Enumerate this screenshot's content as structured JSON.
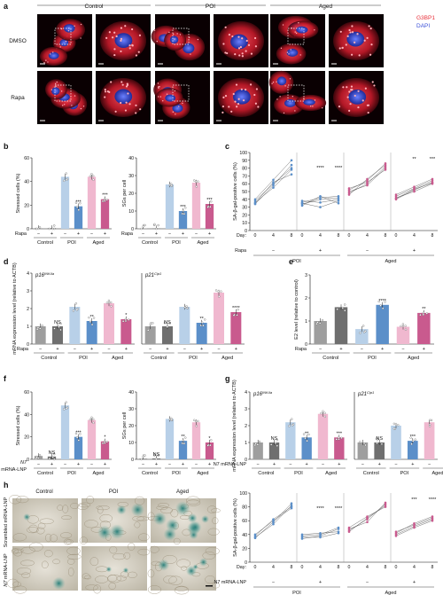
{
  "panel_letters": [
    "a",
    "b",
    "c",
    "d",
    "e",
    "f",
    "g",
    "h"
  ],
  "panel_a": {
    "groups": [
      "Control",
      "POI",
      "Aged"
    ],
    "rows": [
      "DMSO",
      "Rapa"
    ],
    "legend": {
      "g3bp1": "G3BP1",
      "dapi": "DAPI",
      "g3bp1_color": "#e8303a",
      "dapi_color": "#3b50d8"
    }
  },
  "common": {
    "minus": "−",
    "plus": "+",
    "groups": [
      "Control",
      "POI",
      "Aged"
    ],
    "rapa": "Rapa",
    "n7": "N7",
    "n7_lnp": "N7 mRNA-LNP",
    "mrna_lnp": "mRNA-LNP",
    "day": "Day:",
    "ns": "NS"
  },
  "colors": {
    "control": "#9e9e9e",
    "control_dark": "#555555",
    "poi": "#b8d0e8",
    "poi_dark": "#5b8fc9",
    "aged": "#f0b8cf",
    "aged_dark": "#c95a8e"
  },
  "chart_data": [
    {
      "panel": "b",
      "type": "bar",
      "ylabel": "Stressed cells (%)",
      "ylim": [
        0,
        60
      ],
      "yticks": [
        0,
        20,
        40,
        60
      ],
      "categories": [
        "Control −",
        "Control +",
        "POI −",
        "POI +",
        "Aged −",
        "Aged +"
      ],
      "values": [
        0.5,
        0.5,
        44,
        19,
        44,
        25
      ],
      "sig": [
        "",
        "",
        "",
        "***",
        "",
        "***"
      ]
    },
    {
      "panel": "b2",
      "type": "bar",
      "ylabel": "SGs per cell",
      "ylim": [
        0,
        40
      ],
      "yticks": [
        0,
        10,
        20,
        30,
        40
      ],
      "categories": [
        "Control −",
        "Control +",
        "POI −",
        "POI +",
        "Aged −",
        "Aged +"
      ],
      "values": [
        0.2,
        0.2,
        25,
        10,
        26,
        14
      ],
      "sig": [
        "",
        "",
        "",
        "***",
        "",
        "***"
      ]
    },
    {
      "panel": "c",
      "type": "line",
      "ylabel": "SA-β-gal-positive cells (%)",
      "ylim": [
        0,
        100
      ],
      "yticks": [
        0,
        10,
        20,
        30,
        40,
        50,
        60,
        70,
        80,
        90,
        100
      ],
      "x": [
        0,
        4,
        8
      ],
      "segments": [
        {
          "label": "POI −",
          "color": "#5b8fc9",
          "lines": [
            [
              34,
              58,
              84
            ],
            [
              38,
              60,
              80
            ],
            [
              40,
              65,
              90
            ],
            [
              36,
              55,
              78
            ],
            [
              35,
              62,
              72
            ]
          ]
        },
        {
          "label": "POI +",
          "color": "#5b8fc9",
          "lines": [
            [
              34,
              40,
              42
            ],
            [
              36,
              42,
              44
            ],
            [
              38,
              36,
              40
            ],
            [
              32,
              44,
              35
            ],
            [
              35,
              30,
              38
            ]
          ],
          "sig": [
            "",
            "****",
            "****"
          ]
        },
        {
          "label": "Aged −",
          "color": "#c95a8e",
          "lines": [
            [
              48,
              60,
              82
            ],
            [
              52,
              64,
              86
            ],
            [
              50,
              58,
              80
            ],
            [
              46,
              66,
              84
            ],
            [
              54,
              62,
              78
            ]
          ]
        },
        {
          "label": "Aged +",
          "color": "#c95a8e",
          "lines": [
            [
              40,
              52,
              62
            ],
            [
              44,
              54,
              64
            ],
            [
              42,
              50,
              60
            ],
            [
              46,
              56,
              66
            ],
            [
              41,
              53,
              61
            ]
          ],
          "sig": [
            "",
            "**",
            "***"
          ]
        }
      ]
    },
    {
      "panel": "d",
      "type": "bar",
      "ylabel": "mRNA expression level (relative to ACTB)",
      "ylim": [
        0,
        4
      ],
      "yticks": [
        0,
        1,
        2,
        3,
        4
      ],
      "subtitle": "p16INK4a",
      "categories": [
        "Control −",
        "Control +",
        "POI −",
        "POI +",
        "Aged −",
        "Aged +"
      ],
      "values": [
        1.0,
        1.0,
        2.1,
        1.3,
        2.3,
        1.4
      ],
      "sig": [
        "",
        "NS",
        "",
        "**",
        "",
        "*"
      ]
    },
    {
      "panel": "d2",
      "type": "bar",
      "ylim": [
        0,
        4
      ],
      "subtitle": "p21Cip1",
      "categories": [
        "Control −",
        "Control +",
        "POI −",
        "POI +",
        "Aged −",
        "Aged +"
      ],
      "values": [
        1.0,
        1.0,
        2.1,
        1.2,
        2.9,
        1.8
      ],
      "sig": [
        "",
        "NS",
        "",
        "**",
        "",
        "****"
      ]
    },
    {
      "panel": "e",
      "type": "bar",
      "ylabel": "E2 level (relative to control)",
      "ylim": [
        0,
        3
      ],
      "yticks": [
        0,
        1,
        2,
        3
      ],
      "categories": [
        "Control −",
        "Control +",
        "POI −",
        "POI +",
        "Aged −",
        "Aged +"
      ],
      "values": [
        1.0,
        1.6,
        0.65,
        1.7,
        0.75,
        1.35
      ],
      "sig": [
        "",
        "",
        "",
        "****",
        "",
        "**"
      ]
    },
    {
      "panel": "f",
      "type": "bar",
      "ylabel": "Stressed cells (%)",
      "ylim": [
        0,
        60
      ],
      "yticks": [
        0,
        20,
        40,
        60
      ],
      "categories": [
        "Control −",
        "Control +",
        "POI −",
        "POI +",
        "Aged −",
        "Aged +"
      ],
      "values": [
        3,
        2.5,
        48,
        20,
        35,
        16
      ],
      "sig": [
        "",
        "NS",
        "",
        "***",
        "",
        "*"
      ]
    },
    {
      "panel": "f2",
      "type": "bar",
      "ylabel": "SGs per cell",
      "ylim": [
        0,
        40
      ],
      "yticks": [
        0,
        10,
        20,
        30,
        40
      ],
      "categories": [
        "Control −",
        "Control +",
        "POI −",
        "POI +",
        "Aged −",
        "Aged +"
      ],
      "values": [
        0.5,
        0.5,
        24,
        11,
        22,
        10
      ],
      "sig": [
        "",
        "NS",
        "",
        "**",
        "",
        "*"
      ]
    },
    {
      "panel": "g",
      "type": "bar",
      "ylabel": "mRNA expression level (relative to ACTB)",
      "ylim": [
        0,
        4
      ],
      "yticks": [
        0,
        1,
        2,
        3,
        4
      ],
      "subtitle": "p16INK4a",
      "categories": [
        "Control −",
        "Control +",
        "POI −",
        "POI +",
        "Aged −",
        "Aged +"
      ],
      "values": [
        1.0,
        1.0,
        2.2,
        1.3,
        2.7,
        1.3
      ],
      "sig": [
        "",
        "NS",
        "",
        "**",
        "",
        "***"
      ]
    },
    {
      "panel": "g2",
      "type": "bar",
      "ylim": [
        0,
        4
      ],
      "subtitle": "p21Cip1",
      "categories": [
        "Control −",
        "Control +",
        "POI −",
        "POI +",
        "Aged"
      ],
      "values": [
        1.0,
        1.0,
        2.0,
        1.1,
        2.2
      ],
      "sig": [
        "",
        "NS",
        "",
        "***",
        ""
      ]
    },
    {
      "panel": "h",
      "type": "line",
      "ylabel": "SA-β-gal-positive cells (%)",
      "ylim": [
        0,
        100
      ],
      "yticks": [
        0,
        20,
        40,
        60,
        80,
        100
      ],
      "x": [
        0,
        4,
        8
      ],
      "segments": [
        {
          "label": "POI −",
          "color": "#5b8fc9",
          "lines": [
            [
              35,
              58,
              85
            ],
            [
              38,
              62,
              80
            ],
            [
              36,
              55,
              82
            ],
            [
              40,
              60,
              78
            ]
          ]
        },
        {
          "label": "POI +",
          "color": "#5b8fc9",
          "lines": [
            [
              38,
              40,
              50
            ],
            [
              36,
              36,
              42
            ],
            [
              40,
              42,
              44
            ],
            [
              34,
              38,
              48
            ]
          ],
          "sig": [
            "",
            "****",
            "****"
          ]
        },
        {
          "label": "Aged −",
          "color": "#c95a8e",
          "lines": [
            [
              46,
              62,
              84
            ],
            [
              50,
              66,
              80
            ],
            [
              48,
              58,
              86
            ],
            [
              44,
              64,
              82
            ]
          ]
        },
        {
          "label": "Aged +",
          "color": "#c95a8e",
          "lines": [
            [
              40,
              52,
              62
            ],
            [
              42,
              56,
              66
            ],
            [
              38,
              50,
              60
            ],
            [
              44,
              54,
              64
            ]
          ],
          "sig": [
            "",
            "***",
            "****"
          ]
        }
      ]
    }
  ],
  "panel_h_images": {
    "cols": [
      "Control",
      "POI",
      "Aged"
    ],
    "rows": [
      "Scrambled mRNA-LNP",
      "N7 mRNA-LNP"
    ]
  }
}
